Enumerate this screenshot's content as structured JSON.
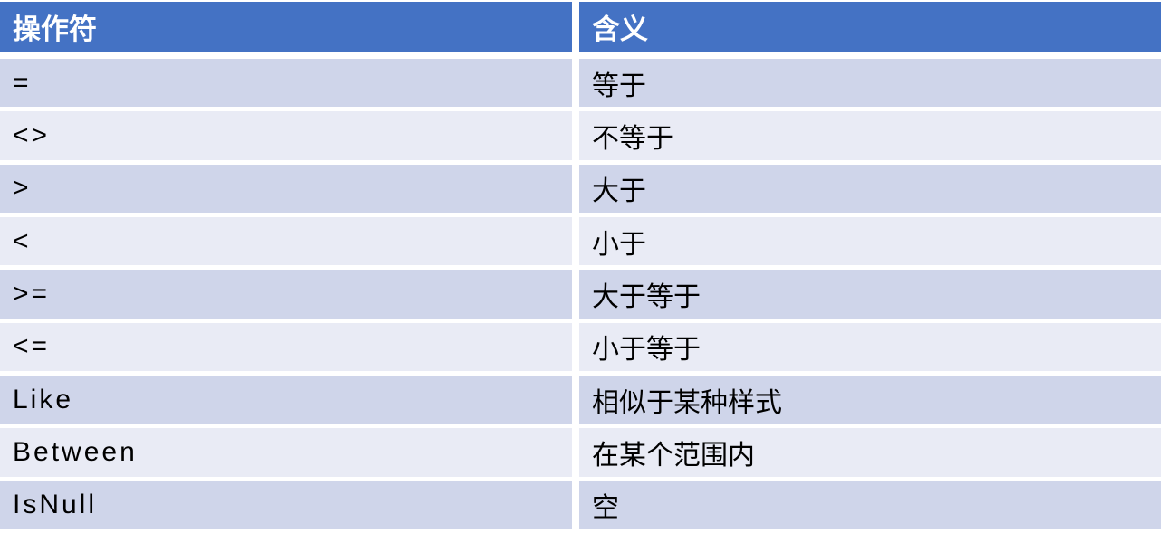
{
  "colors": {
    "background": "#FFFFFF",
    "header_bg": "#4472C4",
    "header_text": "#FFFFFF",
    "band_dark": "#CFD5EA",
    "band_light": "#E9EBF5",
    "body_text": "#000000"
  },
  "table": {
    "columns": {
      "operator": "操作符",
      "meaning": "含义"
    },
    "rows": [
      {
        "operator": "=",
        "meaning": "等于"
      },
      {
        "operator": "<>",
        "meaning": "不等于"
      },
      {
        "operator": ">",
        "meaning": "大于"
      },
      {
        "operator": "<",
        "meaning": "小于"
      },
      {
        "operator": ">=",
        "meaning": "大于等于"
      },
      {
        "operator": "<=",
        "meaning": "小于等于"
      },
      {
        "operator": "Like",
        "meaning": "相似于某种样式"
      },
      {
        "operator": "Between",
        "meaning": "在某个范围内"
      },
      {
        "operator": "IsNull",
        "meaning": "空"
      }
    ]
  },
  "chart_data": {
    "type": "table",
    "title": "",
    "columns": [
      "操作符",
      "含义"
    ],
    "rows": [
      [
        "=",
        "等于"
      ],
      [
        "<>",
        "不等于"
      ],
      [
        ">",
        "大于"
      ],
      [
        "<",
        "小于"
      ],
      [
        ">=",
        "大于等于"
      ],
      [
        "<=",
        "小于等于"
      ],
      [
        "Like",
        "相似于某种样式"
      ],
      [
        "Between",
        "在某个范围内"
      ],
      [
        "IsNull",
        "空"
      ]
    ]
  }
}
